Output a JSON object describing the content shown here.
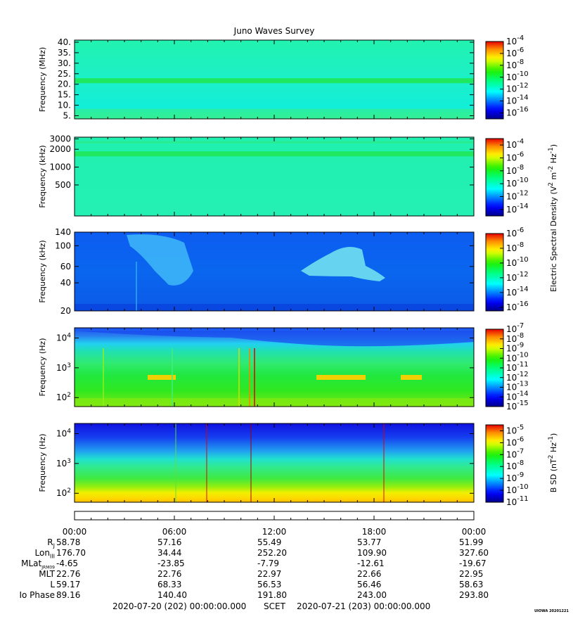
{
  "chart_data": {
    "type": "heatmap",
    "title": "Juno Waves Survey",
    "x_tick_labels": [
      "00:00",
      "06:00",
      "12:00",
      "18:00",
      "00:00"
    ],
    "x_range_hours": [
      0,
      24
    ],
    "panels": [
      {
        "id": "p1",
        "ylabel": "Frequency (MHz)",
        "yscale": "linear",
        "ylim": [
          3.5,
          41
        ],
        "y_ticks": [
          {
            "v": 5,
            "label": "5."
          },
          {
            "v": 10,
            "label": "10."
          },
          {
            "v": 15,
            "label": "15."
          },
          {
            "v": 20,
            "label": "20."
          },
          {
            "v": 25,
            "label": "25."
          },
          {
            "v": 30,
            "label": "30."
          },
          {
            "v": 35,
            "label": "35."
          },
          {
            "v": 40,
            "label": "40."
          }
        ],
        "cbar_range": [
          -17,
          -4
        ],
        "cbar_ticks": [
          {
            "v": -4,
            "label": "10",
            "exp": "-4"
          },
          {
            "v": -6,
            "label": "10",
            "exp": "-6"
          },
          {
            "v": -8,
            "label": "10",
            "exp": "-8"
          },
          {
            "v": -10,
            "label": "10",
            "exp": "-10"
          },
          {
            "v": -12,
            "label": "10",
            "exp": "-12"
          },
          {
            "v": -14,
            "label": "10",
            "exp": "-14"
          },
          {
            "v": -16,
            "label": "10",
            "exp": "-16"
          }
        ]
      },
      {
        "id": "p2",
        "ylabel": "Frequency (kHz)",
        "yscale": "log",
        "ylim": [
          150,
          3200
        ],
        "y_ticks": [
          {
            "v": 500,
            "label": "500"
          },
          {
            "v": 1000,
            "label": "1000"
          },
          {
            "v": 2000,
            "label": "2000"
          },
          {
            "v": 3000,
            "label": "3000"
          }
        ],
        "cbar_range": [
          -15,
          -3
        ],
        "cbar_ticks": [
          {
            "v": -4,
            "label": "10",
            "exp": "-4"
          },
          {
            "v": -6,
            "label": "10",
            "exp": "-6"
          },
          {
            "v": -8,
            "label": "10",
            "exp": "-8"
          },
          {
            "v": -10,
            "label": "10",
            "exp": "-10"
          },
          {
            "v": -12,
            "label": "10",
            "exp": "-12"
          },
          {
            "v": -14,
            "label": "10",
            "exp": "-14"
          }
        ]
      },
      {
        "id": "p3",
        "ylabel": "Frequency (kHz)",
        "yscale": "log",
        "ylim": [
          20,
          140
        ],
        "y_ticks": [
          {
            "v": 20,
            "label": "20"
          },
          {
            "v": 40,
            "label": "40"
          },
          {
            "v": 60,
            "label": "60"
          },
          {
            "v": 100,
            "label": "100"
          },
          {
            "v": 140,
            "label": "140"
          }
        ],
        "cbar_range": [
          -16.5,
          -6
        ],
        "cbar_ticks": [
          {
            "v": -6,
            "label": "10",
            "exp": "-6"
          },
          {
            "v": -8,
            "label": "10",
            "exp": "-8"
          },
          {
            "v": -10,
            "label": "10",
            "exp": "-10"
          },
          {
            "v": -12,
            "label": "10",
            "exp": "-12"
          },
          {
            "v": -14,
            "label": "10",
            "exp": "-14"
          },
          {
            "v": -16,
            "label": "10",
            "exp": "-16"
          }
        ]
      },
      {
        "id": "p4",
        "ylabel": "Frequency (Hz)",
        "yscale": "log",
        "ylim": [
          50,
          22000
        ],
        "y_ticks": [
          {
            "v": 100,
            "label": "10",
            "exp": "2"
          },
          {
            "v": 1000,
            "label": "10",
            "exp": "3"
          },
          {
            "v": 10000,
            "label": "10",
            "exp": "4"
          }
        ],
        "cbar_range": [
          -15,
          -7
        ],
        "cbar_ticks": [
          {
            "v": -7,
            "label": "10",
            "exp": "-7"
          },
          {
            "v": -8,
            "label": "10",
            "exp": "-8"
          },
          {
            "v": -9,
            "label": "10",
            "exp": "-9"
          },
          {
            "v": -10,
            "label": "10",
            "exp": "-10"
          },
          {
            "v": -11,
            "label": "10",
            "exp": "-11"
          },
          {
            "v": -12,
            "label": "10",
            "exp": "-12"
          },
          {
            "v": -13,
            "label": "10",
            "exp": "-13"
          },
          {
            "v": -14,
            "label": "10",
            "exp": "-14"
          },
          {
            "v": -15,
            "label": "10",
            "exp": "-15"
          }
        ]
      },
      {
        "id": "p5",
        "ylabel": "Frequency (Hz)",
        "yscale": "log",
        "ylim": [
          50,
          22000
        ],
        "y_ticks": [
          {
            "v": 100,
            "label": "10",
            "exp": "2"
          },
          {
            "v": 1000,
            "label": "10",
            "exp": "3"
          },
          {
            "v": 10000,
            "label": "10",
            "exp": "4"
          }
        ],
        "cbar_range": [
          -11,
          -4.5
        ],
        "cbar_ticks": [
          {
            "v": -5,
            "label": "10",
            "exp": "-5"
          },
          {
            "v": -6,
            "label": "10",
            "exp": "-6"
          },
          {
            "v": -7,
            "label": "10",
            "exp": "-7"
          },
          {
            "v": -8,
            "label": "10",
            "exp": "-8"
          },
          {
            "v": -9,
            "label": "10",
            "exp": "-9"
          },
          {
            "v": -10,
            "label": "10",
            "exp": "-10"
          },
          {
            "v": -11,
            "label": "10",
            "exp": "-11"
          }
        ]
      }
    ],
    "colorbar_labels": {
      "e_main": "Electric Spectral Density",
      "e_unit": "V",
      "e_unit_rest": " m",
      "e_unit_rest2": " Hz",
      "e_exp1": "2",
      "e_exp2": "-2",
      "e_exp3": "-1",
      "b_main": "B SD",
      "b_unit": "nT",
      "b_unit_rest": " Hz",
      "b_exp1": "2",
      "b_exp2": "-1"
    }
  },
  "ephemeris": {
    "rows": [
      {
        "label": "R",
        "sub": "J",
        "values": [
          "58.78",
          "57.16",
          "55.49",
          "53.77",
          "51.99"
        ]
      },
      {
        "label": "Lon",
        "sub": "III",
        "values": [
          "176.70",
          "34.44",
          "252.20",
          "109.90",
          "327.60"
        ]
      },
      {
        "label": "MLat",
        "sub": "JRM09",
        "values": [
          "-4.65",
          "-23.85",
          "-7.79",
          "-12.61",
          "-19.67"
        ]
      },
      {
        "label": "MLT",
        "sub": "",
        "values": [
          "22.76",
          "22.76",
          "22.97",
          "22.66",
          "22.95"
        ]
      },
      {
        "label": "L",
        "sub": "",
        "values": [
          "59.17",
          "68.33",
          "56.53",
          "56.46",
          "58.63"
        ]
      },
      {
        "label": "Io Phase",
        "sub": "",
        "values": [
          "89.16",
          "140.40",
          "191.80",
          "243.00",
          "293.80"
        ]
      }
    ]
  },
  "footer": {
    "start": "2020-07-20 (202) 00:00:00.000",
    "scet": "SCET",
    "end": "2020-07-21 (203) 00:00:00.000",
    "stamp": "UIOWA 20201221"
  }
}
